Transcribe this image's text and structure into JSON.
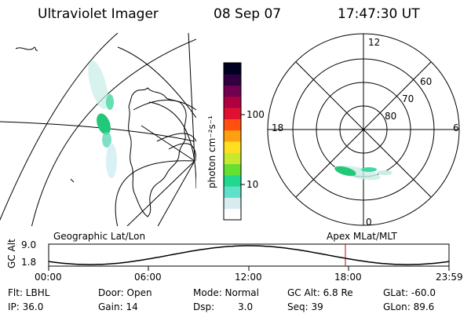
{
  "header": {
    "instrument": "Ultraviolet Imager",
    "date": "08 Sep 07",
    "time": "17:47:30 UT"
  },
  "colorbar": {
    "unit_label": "photon cm⁻²s⁻¹",
    "ticks": [
      "100",
      "10"
    ],
    "colors": [
      "#ffffff",
      "#d8ecf0",
      "#5fe0c8",
      "#22d890",
      "#66e030",
      "#c8e830",
      "#ffe020",
      "#ffa010",
      "#ff5010",
      "#e01030",
      "#b00040",
      "#700050",
      "#300040",
      "#000020"
    ]
  },
  "polar_plot": {
    "mlt_labels": {
      "top": "12",
      "left": "18",
      "right": "6",
      "bottom": "0"
    },
    "lat_labels": [
      "60",
      "70",
      "80"
    ]
  },
  "map_panel": {
    "left_label": "Geographic Lat/Lon",
    "right_label": "Apex MLat/MLT"
  },
  "altitude_strip": {
    "axis_label": "GC Alt",
    "y_ticks": [
      "9.0",
      "1.8"
    ],
    "x_ticks": [
      "00:00",
      "06:00",
      "12:00",
      "18:00",
      "23:59"
    ],
    "marker_time_hours": 17.79,
    "marker_color": "#cc0000"
  },
  "info": {
    "filter": "Flt: LBHL",
    "door": "Door: Open",
    "mode": "Mode: Normal",
    "gc_alt": "GC Alt: 6.8 Re",
    "glat": "GLat: -60.0",
    "ip": "IP: 36.0",
    "gain": "Gain: 14",
    "dsp_label": "Dsp:",
    "dsp_value": "3.0",
    "seq": "Seq: 39",
    "glon": "GLon:  89.6"
  }
}
